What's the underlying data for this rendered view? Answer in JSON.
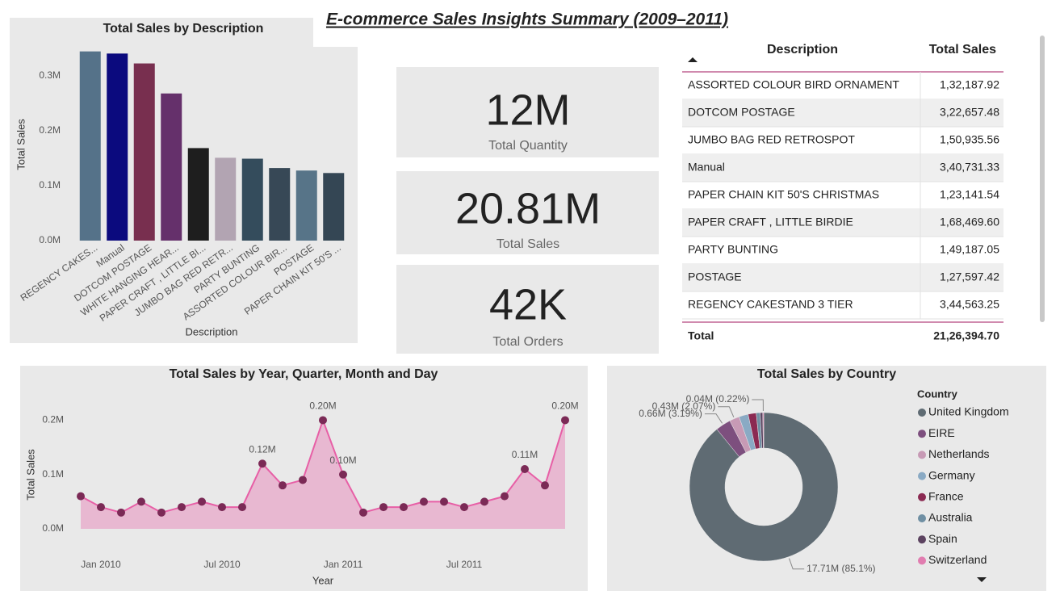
{
  "title": "E-commerce Sales Insights Summary (2009–2011)",
  "chart_data": [
    {
      "type": "bar",
      "title": "Total Sales by Description",
      "x_label": "Description",
      "y_label": "Total Sales",
      "categories": [
        "REGENCY CAKES...",
        "Manual",
        "DOTCOM POSTAGE",
        "WHITE HANGING HEAR...",
        "PAPER CRAFT , LITTLE BI...",
        "JUMBO BAG RED RETR...",
        "PARTY BUNTING",
        "ASSORTED COLOUR BIR...",
        "POSTAGE",
        "PAPER CHAIN KIT 50'S ..."
      ],
      "values": [
        0.3446,
        0.3407,
        0.3227,
        0.268,
        0.1685,
        0.1509,
        0.1492,
        0.1322,
        0.1276,
        0.1231
      ],
      "colors": [
        "#557289",
        "#0b0a7e",
        "#782f4f",
        "#65306b",
        "#1e1e1e",
        "#b2a4b2",
        "#344c5c",
        "#374856",
        "#577488",
        "#344654"
      ],
      "ylim": [
        0,
        0.35
      ],
      "yticks": [
        {
          "value": 0,
          "label": "0.0M"
        },
        {
          "value": 0.1,
          "label": "0.1M"
        },
        {
          "value": 0.2,
          "label": "0.2M"
        },
        {
          "value": 0.3,
          "label": "0.3M"
        }
      ]
    },
    {
      "type": "line",
      "title": "Total Sales by Year, Quarter, Month and Day",
      "x_label": "Year",
      "y_label": "Total Sales",
      "x": [
        "Dec 2009",
        "Jan 2010",
        "Feb 2010",
        "Mar 2010",
        "Apr 2010",
        "May 2010",
        "Jun 2010",
        "Jul 2010",
        "Aug 2010",
        "Sep 2010",
        "Oct 2010",
        "Nov 2010",
        "Dec 2010",
        "Jan 2011",
        "Feb 2011",
        "Mar 2011",
        "Apr 2011",
        "May 2011",
        "Jun 2011",
        "Jul 2011",
        "Aug 2011",
        "Sep 2011",
        "Oct 2011",
        "Nov 2011",
        "Dec 2011"
      ],
      "xticks": [
        "Jan 2010",
        "Jul 2010",
        "Jan 2011",
        "Jul 2011"
      ],
      "series": [
        {
          "name": "Total Sales",
          "color": "#e75fa6",
          "marker_color": "#7b2a56",
          "values": [
            0.06,
            0.04,
            0.03,
            0.05,
            0.03,
            0.04,
            0.05,
            0.04,
            0.04,
            0.12,
            0.08,
            0.09,
            0.2,
            0.1,
            0.03,
            0.04,
            0.04,
            0.05,
            0.05,
            0.04,
            0.05,
            0.06,
            0.11,
            0.08,
            0.2
          ],
          "value_labels": [
            null,
            null,
            null,
            null,
            null,
            null,
            null,
            null,
            null,
            "0.12M",
            null,
            null,
            "0.20M",
            "0.10M",
            null,
            null,
            null,
            null,
            null,
            null,
            null,
            null,
            "0.11M",
            null,
            "0.20M"
          ]
        }
      ],
      "ylim": [
        0,
        0.22
      ],
      "yticks": [
        {
          "value": 0,
          "label": "0.0M"
        },
        {
          "value": 0.1,
          "label": "0.1M"
        },
        {
          "value": 0.2,
          "label": "0.2M"
        }
      ]
    },
    {
      "type": "pie",
      "title": "Total Sales by Country",
      "legend_title": "Country",
      "categories": [
        "United Kingdom",
        "EIRE",
        "Netherlands",
        "Germany",
        "France",
        "Australia",
        "Spain",
        "Switzerland"
      ],
      "values": [
        17.71,
        0.66,
        0.43,
        0.4,
        0.35,
        0.17,
        0.11,
        0.04
      ],
      "value_labels": [
        "17.71M (85.1%)",
        "0.66M (3.19%)",
        "0.43M (2.07%)",
        null,
        null,
        null,
        null,
        "0.04M (0.22%)"
      ],
      "colors": [
        "#5f6b73",
        "#7d4f7e",
        "#c79ab5",
        "#8aaac4",
        "#8b2a52",
        "#6f8fa3",
        "#5c4360",
        "#e17db0"
      ],
      "donut": true
    }
  ],
  "cards": [
    {
      "value": "12M",
      "label": "Total Quantity"
    },
    {
      "value": "20.81M",
      "label": "Total Sales"
    },
    {
      "value": "42K",
      "label": "Total Orders"
    }
  ],
  "table": {
    "header": [
      "Description",
      "Total Sales"
    ],
    "rows": [
      [
        "ASSORTED COLOUR BIRD ORNAMENT",
        "1,32,187.92"
      ],
      [
        "DOTCOM POSTAGE",
        "3,22,657.48"
      ],
      [
        "JUMBO BAG RED RETROSPOT",
        "1,50,935.56"
      ],
      [
        "Manual",
        "3,40,731.33"
      ],
      [
        "PAPER CHAIN KIT 50'S CHRISTMAS",
        "1,23,141.54"
      ],
      [
        "PAPER CRAFT , LITTLE BIRDIE",
        "1,68,469.60"
      ],
      [
        "PARTY BUNTING",
        "1,49,187.05"
      ],
      [
        "POSTAGE",
        "1,27,597.42"
      ],
      [
        "REGENCY CAKESTAND 3 TIER",
        "3,44,563.25"
      ]
    ],
    "total": [
      "Total",
      "21,26,394.70"
    ]
  }
}
